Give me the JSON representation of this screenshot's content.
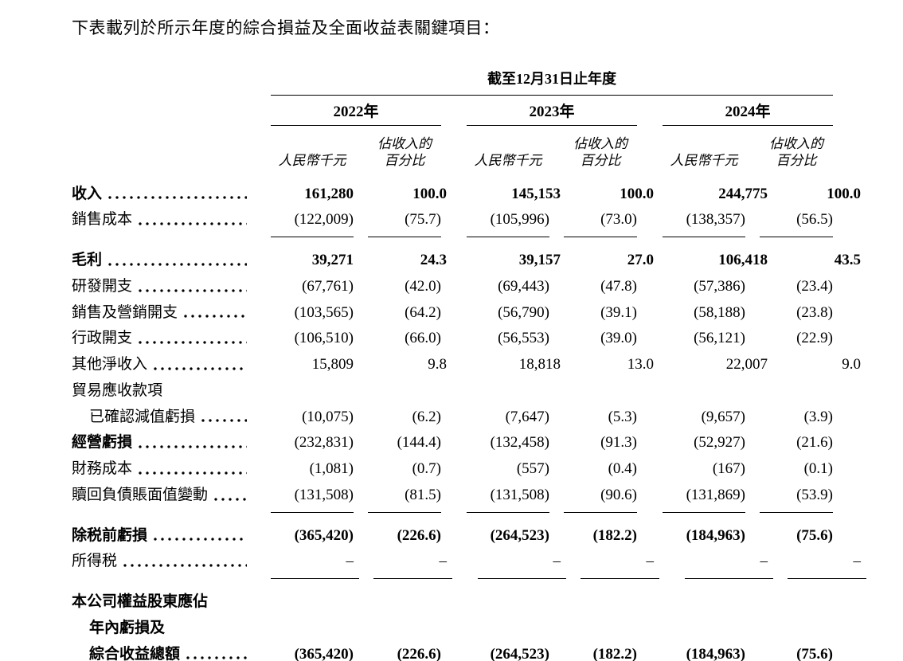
{
  "intro": "下表載列於所示年度的綜合損益及全面收益表關鍵項目：",
  "table": {
    "period_header": "截至12月31日止年度",
    "years": [
      "2022年",
      "2023年",
      "2024年"
    ],
    "subheaders": {
      "amount": "人民幣千元",
      "percent_line1": "佔收入的",
      "percent_line2": "百分比"
    },
    "rows": [
      {
        "label": "收入",
        "bold_label": true,
        "bold_values": true,
        "leader": true,
        "values": [
          "161,280",
          "100.0",
          "145,153",
          "100.0",
          "244,775",
          "100.0"
        ]
      },
      {
        "label": "銷售成本",
        "leader": true,
        "rule": "single",
        "values": [
          "(122,009)",
          "(75.7)",
          "(105,996)",
          "(73.0)",
          "(138,357)",
          "(56.5)"
        ]
      },
      {
        "label": "毛利",
        "bold_label": true,
        "bold_values": true,
        "leader": true,
        "space_before": true,
        "values": [
          "39,271",
          "24.3",
          "39,157",
          "27.0",
          "106,418",
          "43.5"
        ]
      },
      {
        "label": "研發開支",
        "leader": true,
        "values": [
          "(67,761)",
          "(42.0)",
          "(69,443)",
          "(47.8)",
          "(57,386)",
          "(23.4)"
        ]
      },
      {
        "label": "銷售及營銷開支",
        "leader": true,
        "values": [
          "(103,565)",
          "(64.2)",
          "(56,790)",
          "(39.1)",
          "(58,188)",
          "(23.8)"
        ]
      },
      {
        "label": "行政開支",
        "leader": true,
        "values": [
          "(106,510)",
          "(66.0)",
          "(56,553)",
          "(39.0)",
          "(56,121)",
          "(22.9)"
        ]
      },
      {
        "label": "其他淨收入",
        "leader": true,
        "values": [
          "15,809",
          "9.8",
          "18,818",
          "13.0",
          "22,007",
          "9.0"
        ]
      },
      {
        "label": "貿易應收款項",
        "values": null
      },
      {
        "label": "已確認減值虧損",
        "indent": true,
        "leader": true,
        "values": [
          "(10,075)",
          "(6.2)",
          "(7,647)",
          "(5.3)",
          "(9,657)",
          "(3.9)"
        ]
      },
      {
        "label": "經營虧損",
        "bold_label": true,
        "leader": true,
        "values": [
          "(232,831)",
          "(144.4)",
          "(132,458)",
          "(91.3)",
          "(52,927)",
          "(21.6)"
        ]
      },
      {
        "label": "財務成本",
        "leader": true,
        "values": [
          "(1,081)",
          "(0.7)",
          "(557)",
          "(0.4)",
          "(167)",
          "(0.1)"
        ]
      },
      {
        "label": "贖回負債賬面值變動",
        "leader": true,
        "rule": "single",
        "values": [
          "(131,508)",
          "(81.5)",
          "(131,508)",
          "(90.6)",
          "(131,869)",
          "(53.9)"
        ]
      },
      {
        "label": "除税前虧損",
        "bold_label": true,
        "bold_values": true,
        "leader": true,
        "space_before": true,
        "values": [
          "(365,420)",
          "(226.6)",
          "(264,523)",
          "(182.2)",
          "(184,963)",
          "(75.6)"
        ]
      },
      {
        "label": "所得税",
        "leader": true,
        "rule": "single",
        "values": [
          "–",
          "–",
          "–",
          "–",
          "–",
          "–"
        ]
      },
      {
        "label": "本公司權益股東應佔",
        "bold_label": true,
        "space_before": true,
        "values": null
      },
      {
        "label": "年內虧損及",
        "bold_label": true,
        "indent": true,
        "values": null
      },
      {
        "label": "綜合收益總額",
        "bold_label": true,
        "bold_values": true,
        "indent": true,
        "leader": true,
        "rule": "double",
        "values": [
          "(365,420)",
          "(226.6)",
          "(264,523)",
          "(182.2)",
          "(184,963)",
          "(75.6)"
        ]
      }
    ]
  }
}
